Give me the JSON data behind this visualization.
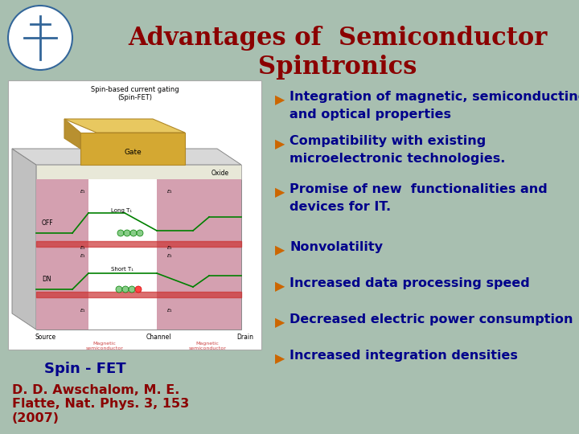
{
  "title_line1": "Advantages of  Semiconductor",
  "title_line2": "Spintronics",
  "title_color": "#8B0000",
  "title_fontsize": 22,
  "background_color": "#a8bfb0",
  "bullet_color": "#00008B",
  "bullet_arrow_color": "#cc6600",
  "bullet_items": [
    [
      "Integration of magnetic, semiconducting",
      "and optical properties"
    ],
    [
      "Compatibility with existing",
      "microelectronic technologies."
    ],
    [
      "Promise of new  functionalities and",
      "devices for IT."
    ],
    [
      "Nonvolatility"
    ],
    [
      "Increased data processing speed"
    ],
    [
      "Decreased electric power consumption"
    ],
    [
      "Increased integration densities"
    ]
  ],
  "bullet_fontsize": 11.5,
  "spin_fet_label": "Spin - FET",
  "spin_fet_fontsize": 13,
  "ref_text": "D. D. Awschalom, M. E.\nFlatte, Nat. Phys. 3, 153\n(2007)",
  "ref_fontsize": 11.5,
  "text_color": "#00008B",
  "ref_color": "#8B0000"
}
